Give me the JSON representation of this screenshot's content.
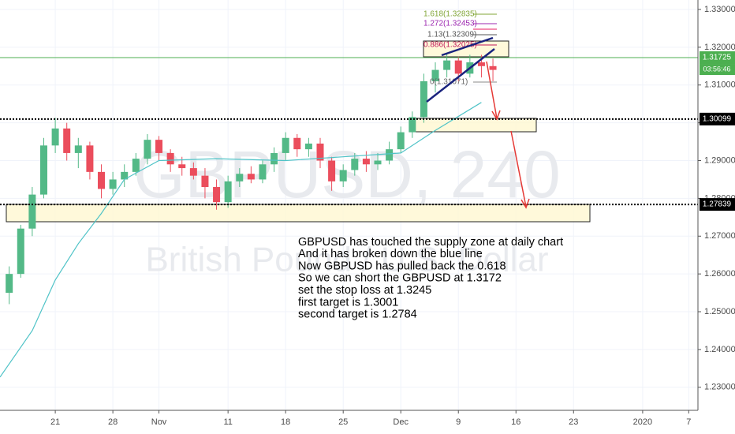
{
  "chart_data": {
    "type": "candlestick",
    "watermark": "GBPUSD, 240",
    "watermark_description": "British Pound / U.S. Dollar",
    "up_color": "#53b987",
    "down_color": "#eb4d5c",
    "grid": true,
    "xlim": [
      -4.8,
      55.8
    ],
    "ylim": [
      1.2239,
      1.3325
    ],
    "xticks": [
      {
        "value": 0,
        "label": "21"
      },
      {
        "value": 5,
        "label": "28"
      },
      {
        "value": 9,
        "label": "Nov"
      },
      {
        "value": 15,
        "label": "11"
      },
      {
        "value": 20,
        "label": "18"
      },
      {
        "value": 25,
        "label": "25"
      },
      {
        "value": 30,
        "label": "Dec"
      },
      {
        "value": 35,
        "label": "9"
      },
      {
        "value": 40,
        "label": "16"
      },
      {
        "value": 45,
        "label": "23"
      },
      {
        "value": 51,
        "label": "2020"
      },
      {
        "value": 55,
        "label": "7"
      }
    ],
    "yticks": [
      {
        "value": 1.23,
        "label": "1.23000"
      },
      {
        "value": 1.24,
        "label": "1.24000"
      },
      {
        "value": 1.25,
        "label": "1.25000"
      },
      {
        "value": 1.26,
        "label": "1.26000"
      },
      {
        "value": 1.27,
        "label": "1.27000"
      },
      {
        "value": 1.28,
        "label": "1.28000"
      },
      {
        "value": 1.29,
        "label": "1.29000"
      },
      {
        "value": 1.3,
        "label": "1.30000"
      },
      {
        "value": 1.31,
        "label": "1.31000"
      },
      {
        "value": 1.32,
        "label": "1.32000"
      },
      {
        "value": 1.33,
        "label": "1.33000"
      }
    ],
    "x": [
      -4,
      -3,
      -2,
      -1,
      0,
      1,
      2,
      3,
      4,
      5,
      6,
      7,
      8,
      9,
      10,
      11,
      12,
      13,
      14,
      15,
      16,
      17,
      18,
      19,
      20,
      21,
      22,
      23,
      24,
      25,
      26,
      27,
      28,
      29,
      30,
      31,
      32,
      33,
      34,
      35,
      36,
      37,
      38
    ],
    "open": [
      1.255,
      1.26,
      1.272,
      1.281,
      1.294,
      1.2985,
      1.292,
      1.294,
      1.287,
      1.2825,
      1.285,
      1.287,
      1.2905,
      1.2955,
      1.292,
      1.289,
      1.288,
      1.286,
      1.283,
      1.279,
      1.2845,
      1.2865,
      1.285,
      1.289,
      1.292,
      1.296,
      1.293,
      1.2945,
      1.29,
      1.2845,
      1.2875,
      1.2905,
      1.289,
      1.29,
      1.293,
      1.2975,
      1.3015,
      1.311,
      1.314,
      1.3165,
      1.313,
      1.316,
      1.315
    ],
    "high": [
      1.262,
      1.273,
      1.283,
      1.296,
      1.3013,
      1.3,
      1.296,
      1.295,
      1.289,
      1.287,
      1.289,
      1.292,
      1.297,
      1.2965,
      1.293,
      1.291,
      1.2895,
      1.288,
      1.285,
      1.286,
      1.288,
      1.2885,
      1.29,
      1.2935,
      1.2975,
      1.297,
      1.296,
      1.296,
      1.291,
      1.289,
      1.292,
      1.2925,
      1.292,
      1.295,
      1.299,
      1.303,
      1.313,
      1.316,
      1.3185,
      1.3175,
      1.318,
      1.318,
      1.317
    ],
    "low": [
      1.252,
      1.259,
      1.27,
      1.28,
      1.292,
      1.29,
      1.288,
      1.285,
      1.28,
      1.281,
      1.283,
      1.286,
      1.289,
      1.29,
      1.287,
      1.286,
      1.285,
      1.28,
      1.277,
      1.2775,
      1.283,
      1.284,
      1.284,
      1.287,
      1.29,
      1.291,
      1.291,
      1.288,
      1.282,
      1.283,
      1.286,
      1.287,
      1.2875,
      1.289,
      1.292,
      1.296,
      1.3,
      1.308,
      1.312,
      1.311,
      1.312,
      1.312,
      1.311
    ],
    "close": [
      1.26,
      1.272,
      1.281,
      1.294,
      1.2985,
      1.292,
      1.294,
      1.287,
      1.2825,
      1.285,
      1.287,
      1.2905,
      1.2955,
      1.292,
      1.289,
      1.288,
      1.286,
      1.283,
      1.279,
      1.2845,
      1.2865,
      1.285,
      1.289,
      1.292,
      1.296,
      1.293,
      1.2945,
      1.29,
      1.2845,
      1.2875,
      1.2905,
      1.289,
      1.29,
      1.293,
      1.2975,
      1.3015,
      1.311,
      1.314,
      1.3165,
      1.313,
      1.316,
      1.315,
      1.314
    ],
    "moving_average": {
      "color": "#4fc3c7",
      "x": [
        -4.8,
        -2,
        0,
        2,
        4,
        6,
        9,
        14,
        20,
        25,
        30,
        33,
        37
      ],
      "values": [
        1.2327,
        1.245,
        1.2584,
        1.268,
        1.276,
        1.285,
        1.29,
        1.2905,
        1.29,
        1.291,
        1.292,
        1.298,
        1.3054
      ]
    },
    "price_lines": [
      {
        "price": 1.31725,
        "color": "#4caf50",
        "dashed": false
      },
      {
        "price": 1.30099,
        "color": "#000000",
        "dashed": true
      },
      {
        "price": 1.27839,
        "color": "#000000",
        "dashed": true
      }
    ],
    "countdown": "03:56:46",
    "fib_labels": [
      "1.618(1.32835)",
      "1.272(1.32453)",
      "1.13(1.32309)",
      "0.886(1.32025)",
      "0(1.31071)"
    ],
    "annotation": [
      "GBPUSD has touched the supply zone at daily chart",
      "And it has broken down the blue line",
      "Now GBPUSD has pulled back the 0.618",
      "So we can short the GBPUSD at 1.3172",
      "set the stop loss at 1.3245",
      "first target is 1.3001",
      "second target is 1.2784"
    ]
  }
}
